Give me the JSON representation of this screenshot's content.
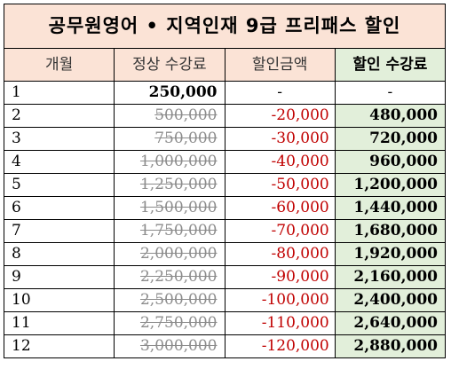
{
  "title": "공무원영어 • 지역인재 9급 프리패스 할인",
  "headers": {
    "month": "개월",
    "regular": "정상 수강료",
    "discount": "할인금액",
    "final": "할인 수강료"
  },
  "rows": [
    {
      "month": "1",
      "regular": "250,000",
      "discount": "-",
      "final": "-"
    },
    {
      "month": "2",
      "regular": "500,000",
      "discount": "-20,000",
      "final": "480,000"
    },
    {
      "month": "3",
      "regular": "750,000",
      "discount": "-30,000",
      "final": "720,000"
    },
    {
      "month": "4",
      "regular": "1,000,000",
      "discount": "-40,000",
      "final": "960,000"
    },
    {
      "month": "5",
      "regular": "1,250,000",
      "discount": "-50,000",
      "final": "1,200,000"
    },
    {
      "month": "6",
      "regular": "1,500,000",
      "discount": "-60,000",
      "final": "1,440,000"
    },
    {
      "month": "7",
      "regular": "1,750,000",
      "discount": "-70,000",
      "final": "1,680,000"
    },
    {
      "month": "8",
      "regular": "2,000,000",
      "discount": "-80,000",
      "final": "1,920,000"
    },
    {
      "month": "9",
      "regular": "2,250,000",
      "discount": "-90,000",
      "final": "2,160,000"
    },
    {
      "month": "10",
      "regular": "2,500,000",
      "discount": "-100,000",
      "final": "2,400,000"
    },
    {
      "month": "11",
      "regular": "2,750,000",
      "discount": "-110,000",
      "final": "2,640,000"
    },
    {
      "month": "12",
      "regular": "3,000,000",
      "discount": "-120,000",
      "final": "2,880,000"
    }
  ],
  "colors": {
    "header_bg": "#fbe3d6",
    "highlight_bg": "#e2efda",
    "discount_text": "#c00000",
    "struck_text": "#8c8c8c"
  }
}
